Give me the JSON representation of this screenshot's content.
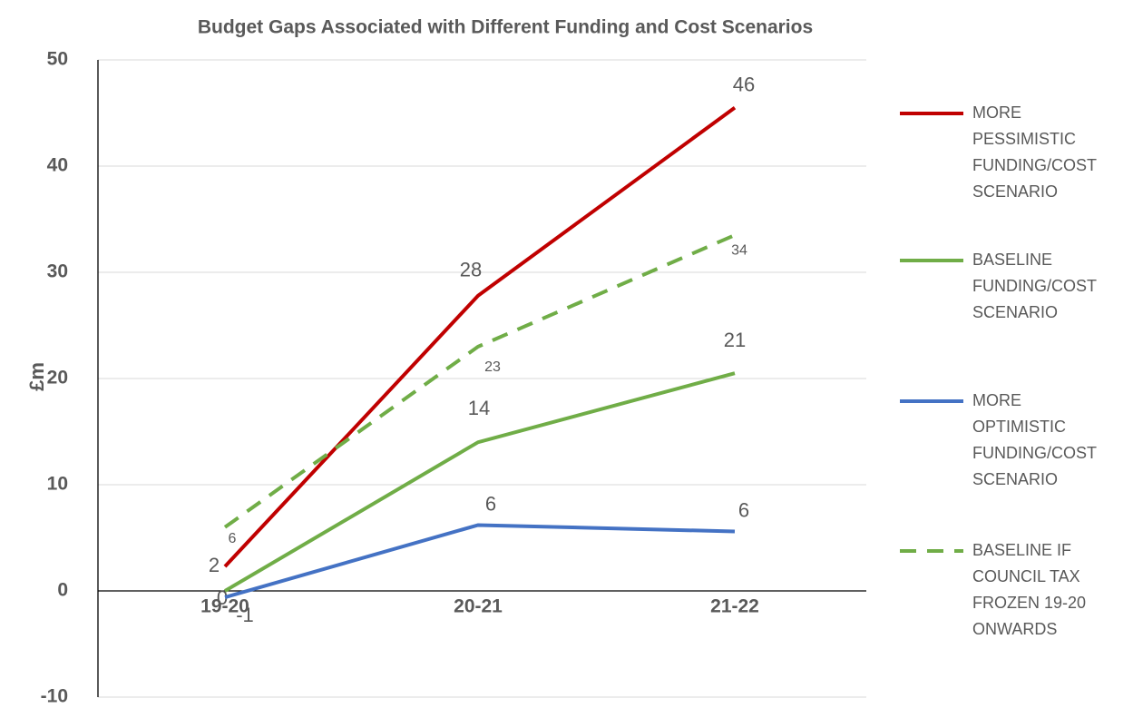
{
  "chart_data": {
    "type": "line",
    "title": "Budget Gaps Associated with Different Funding and Cost Scenarios",
    "y_label": "£m",
    "categories": [
      "19-20",
      "20-21",
      "21-22"
    ],
    "series": [
      {
        "name": "MORE PESSIMISTIC FUNDING/COST SCENARIO",
        "color": "#c00000",
        "dash": false,
        "values": [
          2.3,
          27.8,
          45.5
        ],
        "value_labels": [
          "2",
          "28",
          "46"
        ]
      },
      {
        "name": "BASELINE FUNDING/COST SCENARIO",
        "color": "#70ad47",
        "dash": false,
        "values": [
          0,
          14,
          20.5
        ],
        "value_labels": [
          "0",
          "14",
          "21"
        ]
      },
      {
        "name": "MORE OPTIMISTIC FUNDING/COST SCENARIO",
        "color": "#4472c4",
        "dash": false,
        "values": [
          -0.6,
          6.2,
          5.6
        ],
        "value_labels": [
          "-1",
          "6",
          "6"
        ]
      },
      {
        "name": "BASELINE IF COUNCIL TAX FROZEN 19-20 ONWARDS",
        "color": "#70ad47",
        "dash": true,
        "values": [
          6,
          23,
          33.5
        ],
        "value_labels": [
          "6",
          "23",
          "34"
        ]
      }
    ],
    "ylim": [
      -10,
      50
    ],
    "yticks": [
      -10,
      0,
      10,
      20,
      30,
      40,
      50
    ],
    "grid": true,
    "legend": "right"
  }
}
